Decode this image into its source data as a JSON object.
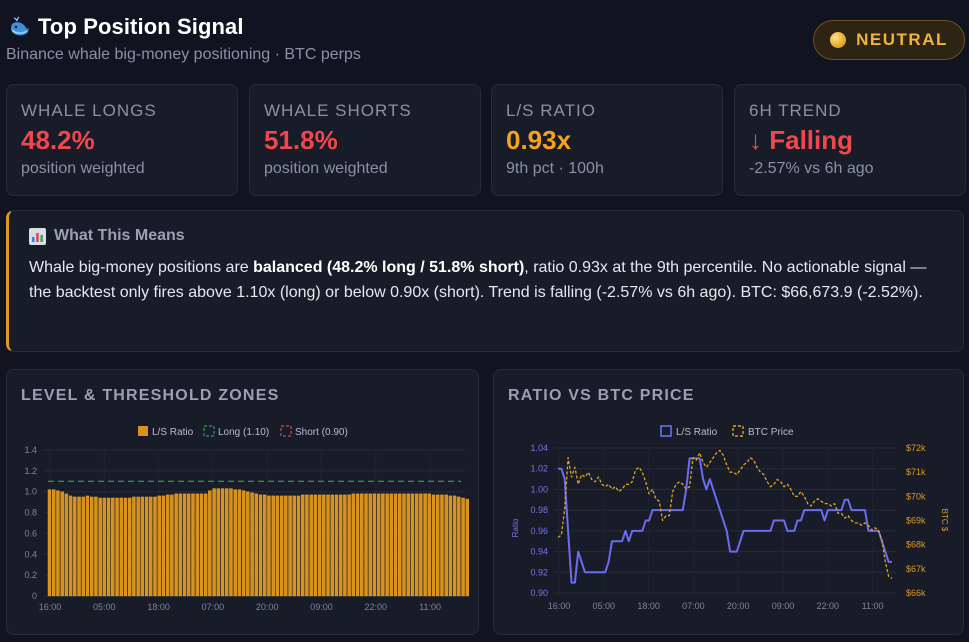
{
  "header": {
    "title": "Top Position Signal",
    "subtitle": "Binance whale big-money positioning · BTC perps",
    "logo_icon": "whale-icon"
  },
  "badge": {
    "label": "NEUTRAL",
    "dot_color": "#f0b43c"
  },
  "stats": [
    {
      "label": "WHALE LONGS",
      "value": "48.2%",
      "sub": "position weighted",
      "color": "#f0474d"
    },
    {
      "label": "WHALE SHORTS",
      "value": "51.8%",
      "sub": "position weighted",
      "color": "#f0474d"
    },
    {
      "label": "L/S RATIO",
      "value": "0.93x",
      "sub": "9th pct · 100h",
      "color": "#f6a21e"
    },
    {
      "label": "6H TREND",
      "value": "↓ Falling",
      "sub": "-2.57% vs 6h ago",
      "color": "#f0474d"
    }
  ],
  "explain": {
    "icon": "bar-chart-icon",
    "title": "What This Means",
    "body_pre": "Whale big-money positions are ",
    "body_bold": "balanced (48.2% long / 51.8% short)",
    "body_post": ", ratio 0.93x at the 9th percentile. No actionable signal — the backtest only fires above 1.10x (long) or below 0.90x (short). Trend is falling (-2.57% vs 6h ago). BTC: $66,673.9 (-2.52%)."
  },
  "panels": {
    "left_title": "LEVEL & THRESHOLD ZONES",
    "right_title": "RATIO VS BTC PRICE"
  },
  "chart_data": [
    {
      "type": "bar",
      "title": "LEVEL & THRESHOLD ZONES",
      "legend": [
        "L/S Ratio",
        "Long (1.10)",
        "Short (0.90)"
      ],
      "x_ticks": [
        "16:00",
        "05:00",
        "18:00",
        "07:00",
        "20:00",
        "09:00",
        "22:00",
        "11:00"
      ],
      "y_ticks": [
        "0",
        "0.2",
        "0.4",
        "0.6",
        "0.8",
        "1.0",
        "1.2",
        "1.4"
      ],
      "ylim": [
        0,
        1.4
      ],
      "thresholds": {
        "long": 1.1,
        "short": 0.9
      },
      "series": [
        {
          "name": "L/S Ratio",
          "color": "#e0a21e",
          "values": [
            1.02,
            1.02,
            1.01,
            1.0,
            0.98,
            0.96,
            0.95,
            0.95,
            0.95,
            0.96,
            0.95,
            0.95,
            0.94,
            0.94,
            0.94,
            0.94,
            0.94,
            0.94,
            0.94,
            0.94,
            0.95,
            0.95,
            0.95,
            0.95,
            0.95,
            0.95,
            0.96,
            0.96,
            0.97,
            0.97,
            0.98,
            0.98,
            0.98,
            0.98,
            0.98,
            0.98,
            0.98,
            0.98,
            1.01,
            1.03,
            1.03,
            1.03,
            1.03,
            1.03,
            1.02,
            1.02,
            1.01,
            1.0,
            0.99,
            0.98,
            0.97,
            0.97,
            0.96,
            0.96,
            0.96,
            0.96,
            0.96,
            0.96,
            0.96,
            0.96,
            0.97,
            0.97,
            0.97,
            0.97,
            0.97,
            0.97,
            0.97,
            0.97,
            0.97,
            0.97,
            0.97,
            0.97,
            0.98,
            0.98,
            0.98,
            0.98,
            0.98,
            0.98,
            0.98,
            0.98,
            0.98,
            0.98,
            0.98,
            0.98,
            0.98,
            0.98,
            0.98,
            0.98,
            0.98,
            0.98,
            0.98,
            0.97,
            0.97,
            0.97,
            0.97,
            0.96,
            0.96,
            0.95,
            0.94,
            0.93
          ]
        }
      ]
    },
    {
      "type": "line",
      "title": "RATIO VS BTC PRICE",
      "legend": [
        "L/S Ratio",
        "BTC Price"
      ],
      "x_ticks": [
        "16:00",
        "05:00",
        "18:00",
        "07:00",
        "20:00",
        "09:00",
        "22:00",
        "11:00"
      ],
      "y_ticks": [
        "0.90",
        "0.92",
        "0.94",
        "0.96",
        "0.98",
        "1.00",
        "1.02",
        "1.04"
      ],
      "y2_ticks": [
        "$66k",
        "$67k",
        "$68k",
        "$69k",
        "$70k",
        "$71k",
        "$72k"
      ],
      "ylabel": "Ratio",
      "y2label": "BTC $",
      "ylim": [
        0.9,
        1.04
      ],
      "y2lim": [
        66000,
        72000
      ],
      "series": [
        {
          "name": "L/S Ratio",
          "color": "#6b6cf0",
          "values": [
            1.02,
            1.02,
            1.01,
            0.96,
            0.91,
            0.91,
            0.94,
            0.93,
            0.92,
            0.92,
            0.92,
            0.92,
            0.92,
            0.92,
            0.92,
            0.93,
            0.95,
            0.95,
            0.95,
            0.95,
            0.96,
            0.95,
            0.96,
            0.96,
            0.96,
            0.96,
            0.97,
            0.97,
            0.98,
            0.98,
            0.98,
            0.98,
            0.98,
            0.98,
            0.98,
            0.98,
            0.98,
            0.98,
            1.0,
            1.03,
            1.03,
            1.03,
            1.03,
            1.01,
            1.0,
            1.01,
            1.0,
            0.99,
            0.98,
            0.97,
            0.96,
            0.94,
            0.94,
            0.94,
            0.95,
            0.96,
            0.96,
            0.96,
            0.96,
            0.96,
            0.96,
            0.96,
            0.96,
            0.96,
            0.97,
            0.97,
            0.97,
            0.97,
            0.96,
            0.96,
            0.96,
            0.97,
            0.97,
            0.98,
            0.98,
            0.98,
            0.98,
            0.98,
            0.98,
            0.97,
            0.98,
            0.98,
            0.98,
            0.98,
            0.98,
            0.99,
            0.99,
            0.98,
            0.98,
            0.98,
            0.98,
            0.98,
            0.96,
            0.96,
            0.96,
            0.96,
            0.95,
            0.94,
            0.93,
            0.93
          ]
        },
        {
          "name": "BTC Price",
          "color": "#e0a21e",
          "values": [
            68300,
            68400,
            69500,
            71600,
            70800,
            71200,
            70500,
            70900,
            70800,
            71000,
            70700,
            70600,
            70800,
            70500,
            70400,
            70500,
            70300,
            70400,
            70200,
            70300,
            70500,
            70500,
            70600,
            71100,
            71200,
            71000,
            70600,
            70100,
            70300,
            69900,
            69800,
            69000,
            69200,
            69200,
            70200,
            70500,
            70600,
            70500,
            70300,
            70400,
            71600,
            71500,
            71800,
            71400,
            71200,
            71400,
            71600,
            71800,
            71900,
            71700,
            71300,
            71000,
            71000,
            70900,
            71100,
            71300,
            71400,
            71600,
            71500,
            71200,
            71000,
            70900,
            70600,
            70400,
            70500,
            70700,
            70600,
            70400,
            70500,
            70300,
            70000,
            70000,
            70200,
            70000,
            69700,
            69600,
            69800,
            69900,
            69800,
            69700,
            69700,
            69600,
            69700,
            69300,
            69300,
            69100,
            69200,
            69000,
            68900,
            68900,
            68800,
            68900,
            68800,
            68600,
            68700,
            68600,
            68200,
            67300,
            66700,
            66600
          ]
        }
      ]
    }
  ]
}
